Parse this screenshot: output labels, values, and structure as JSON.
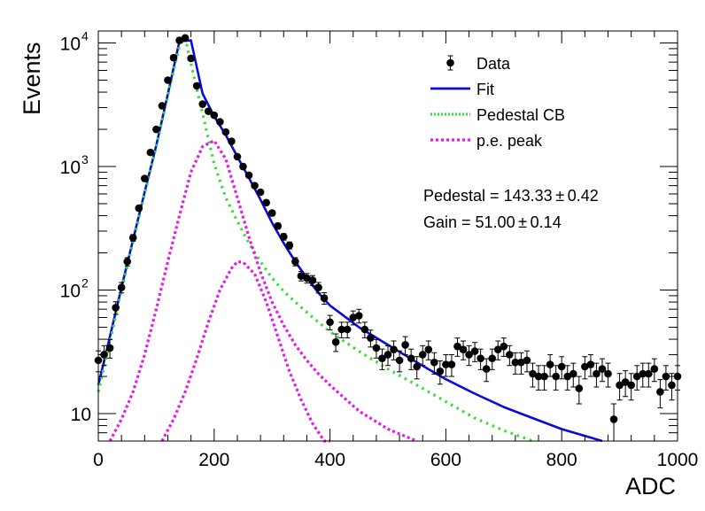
{
  "chart_data": {
    "type": "scatter",
    "xlabel": "ADC",
    "ylabel": "Events",
    "xlim": [
      0,
      1000
    ],
    "ylim": [
      6,
      12500
    ],
    "yscale": "log",
    "x_ticks": [
      0,
      200,
      400,
      600,
      800,
      1000
    ],
    "y_ticks": [
      {
        "value": 10,
        "base": "10",
        "exp": ""
      },
      {
        "value": 100,
        "base": "10",
        "exp": "2"
      },
      {
        "value": 1000,
        "base": "10",
        "exp": "3"
      },
      {
        "value": 10000,
        "base": "10",
        "exp": "4"
      }
    ],
    "grid": false,
    "legend_position": "top-right",
    "legend": [
      {
        "label": "Data",
        "kind": "marker",
        "color": "#000000"
      },
      {
        "label": "Fit",
        "kind": "line",
        "color": "#0a0adc"
      },
      {
        "label": "Pedestal CB",
        "kind": "dotted",
        "color": "#33dd33"
      },
      {
        "label": "p.e. peak",
        "kind": "dashed",
        "color": "#e619e6"
      }
    ],
    "annotations": [
      "Pedestal = 143.33 ± 0.42",
      "Gain = 51.00 ± 0.14"
    ],
    "data_points": {
      "x": [
        0,
        10,
        20,
        30,
        40,
        50,
        60,
        70,
        80,
        90,
        100,
        110,
        120,
        130,
        140,
        150,
        160,
        170,
        180,
        190,
        200,
        210,
        220,
        230,
        240,
        250,
        260,
        270,
        280,
        290,
        300,
        310,
        320,
        330,
        340,
        350,
        360,
        370,
        380,
        390,
        400,
        410,
        420,
        430,
        440,
        450,
        460,
        470,
        480,
        490,
        500,
        510,
        520,
        530,
        540,
        550,
        560,
        570,
        580,
        590,
        600,
        610,
        620,
        630,
        640,
        650,
        660,
        670,
        680,
        690,
        700,
        710,
        720,
        730,
        740,
        750,
        760,
        770,
        780,
        790,
        800,
        810,
        820,
        830,
        840,
        850,
        860,
        870,
        880,
        890,
        900,
        910,
        920,
        930,
        940,
        950,
        960,
        970,
        980,
        990,
        1000
      ],
      "y": [
        27,
        30,
        34,
        72,
        105,
        170,
        265,
        460,
        800,
        1300,
        2000,
        3100,
        5000,
        7600,
        10500,
        11000,
        7500,
        4500,
        3200,
        2800,
        2600,
        2300,
        1900,
        1600,
        1200,
        1000,
        850,
        700,
        620,
        510,
        420,
        330,
        270,
        230,
        170,
        130,
        125,
        120,
        105,
        86,
        55,
        38,
        48,
        48,
        60,
        62,
        48,
        41,
        34,
        28,
        30,
        33,
        27,
        36,
        28,
        24,
        30,
        33,
        26,
        22,
        25,
        25,
        35,
        33,
        30,
        32,
        28,
        23,
        28,
        33,
        35,
        30,
        26,
        26,
        27,
        21,
        20,
        20,
        25,
        20,
        24,
        20,
        21,
        16,
        24,
        25,
        21,
        23,
        21,
        9,
        17,
        18,
        17,
        20,
        21,
        21,
        23,
        15,
        20,
        17,
        20
      ]
    },
    "series": [
      {
        "name": "Fit",
        "color": "#0a0adc",
        "x": [
          0,
          20,
          40,
          60,
          80,
          100,
          120,
          140,
          160,
          180,
          200,
          220,
          240,
          260,
          280,
          300,
          320,
          340,
          360,
          380,
          400,
          450,
          500,
          550,
          600,
          650,
          700,
          750,
          800,
          850,
          870
        ],
        "y": [
          17,
          42,
          105,
          255,
          620,
          1480,
          3850,
          10300,
          10500,
          3900,
          2550,
          1800,
          1200,
          810,
          540,
          350,
          240,
          170,
          125,
          95,
          75,
          50,
          36,
          26,
          19,
          14.5,
          11.3,
          9.2,
          7.5,
          6.4,
          6
        ]
      },
      {
        "name": "Pedestal CB",
        "color": "#33dd33",
        "x": [
          0,
          20,
          40,
          60,
          80,
          100,
          120,
          140,
          150,
          160,
          180,
          200,
          220,
          240,
          260,
          280,
          300,
          320,
          340,
          360,
          380,
          400,
          450,
          500,
          550,
          600,
          650,
          700,
          750
        ],
        "y": [
          15,
          38,
          100,
          245,
          600,
          1450,
          3750,
          9500,
          11000,
          6800,
          2700,
          1050,
          560,
          360,
          240,
          170,
          125,
          98,
          80,
          66,
          55,
          46,
          32,
          23,
          17,
          12.5,
          9.2,
          7.3,
          6
        ]
      },
      {
        "name": "p.e. peak",
        "color": "#e619e6",
        "x": [
          20,
          40,
          60,
          80,
          100,
          120,
          140,
          160,
          180,
          200,
          220,
          240,
          260,
          280,
          300,
          320,
          340,
          360,
          380,
          400,
          450,
          500,
          550
        ],
        "y": [
          6,
          9,
          15,
          30,
          70,
          170,
          400,
          900,
          1450,
          1620,
          1150,
          560,
          270,
          140,
          80,
          52,
          36,
          27,
          21,
          17,
          10.5,
          7.5,
          6
        ]
      },
      {
        "name": "p.e. peak",
        "color": "#e619e6",
        "x": [
          110,
          130,
          150,
          170,
          190,
          210,
          230,
          240,
          250,
          270,
          290,
          310,
          330,
          350,
          370,
          390,
          400
        ],
        "y": [
          6,
          9,
          15,
          28,
          55,
          100,
          150,
          170,
          168,
          135,
          80,
          42,
          22,
          13,
          8.3,
          6,
          5.5
        ]
      }
    ]
  }
}
